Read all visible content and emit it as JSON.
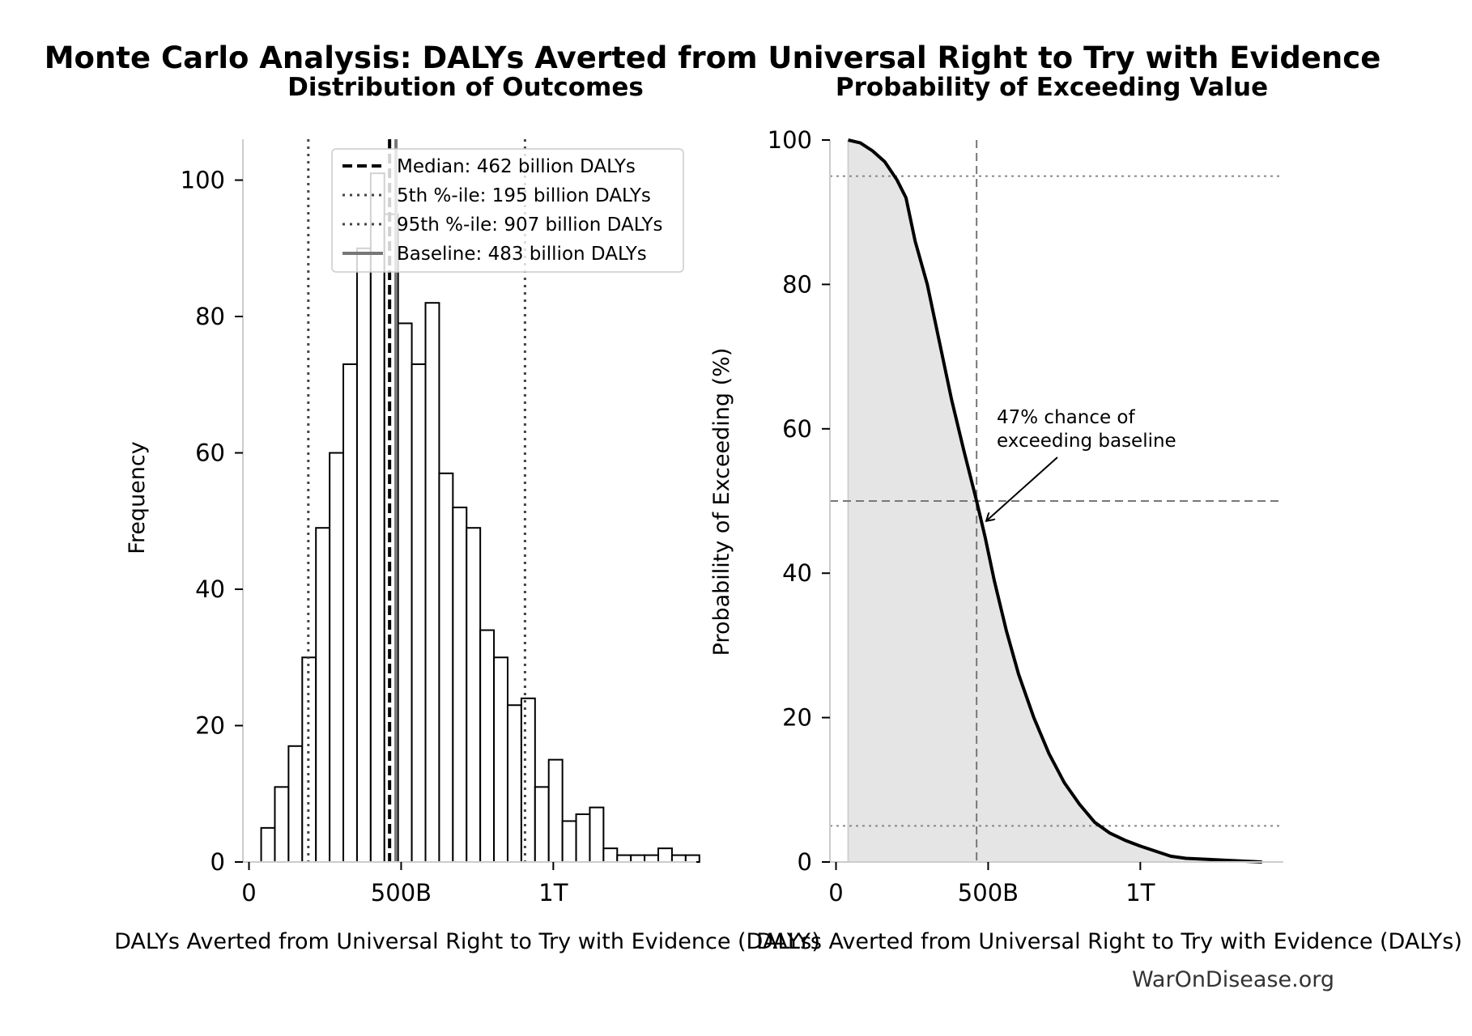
{
  "figure": {
    "suptitle": "Monte Carlo Analysis: DALYs Averted from Universal Right to Try with Evidence",
    "watermark": "WarOnDisease.org"
  },
  "chart_data": [
    {
      "type": "bar",
      "subtype": "histogram",
      "title": "Distribution of Outcomes",
      "xlabel": "DALYs Averted from Universal Right to Try with Evidence (DALYs)",
      "ylabel": "Frequency",
      "x_ticks": [
        {
          "value": 0,
          "label": "0"
        },
        {
          "value": 500,
          "label": "500B"
        },
        {
          "value": 1000,
          "label": "1T"
        }
      ],
      "y_ticks": [
        0,
        20,
        40,
        60,
        80,
        100
      ],
      "xlim": [
        -20,
        1470
      ],
      "ylim": [
        0,
        106
      ],
      "x_unit": "billion DALYs",
      "bins": {
        "start": 40,
        "width": 45,
        "counts": [
          5,
          11,
          17,
          30,
          49,
          60,
          73,
          90,
          101,
          95,
          79,
          73,
          82,
          57,
          52,
          49,
          34,
          30,
          23,
          24,
          11,
          15,
          6,
          7,
          8,
          2,
          1,
          1,
          1,
          2,
          1,
          1
        ]
      },
      "reference_lines": [
        {
          "name": "Median",
          "value": 462,
          "style": "dashed",
          "color": "#000000",
          "label": "Median: 462 billion DALYs"
        },
        {
          "name": "5th percentile",
          "value": 195,
          "style": "dotted",
          "color": "#444444",
          "label": "5th %-ile: 195 billion DALYs"
        },
        {
          "name": "95th percentile",
          "value": 907,
          "style": "dotted",
          "color": "#444444",
          "label": "95th %-ile: 907 billion DALYs"
        },
        {
          "name": "Baseline",
          "value": 483,
          "style": "solid",
          "color": "#777777",
          "label": "Baseline: 483 billion DALYs"
        }
      ],
      "legend": "top-right"
    },
    {
      "type": "area",
      "subtype": "exceedance-curve",
      "title": "Probability of Exceeding Value",
      "xlabel": "DALYs Averted from Universal Right to Try with Evidence (DALYs)",
      "ylabel": "Probability of Exceeding (%)",
      "x_ticks": [
        {
          "value": 0,
          "label": "0"
        },
        {
          "value": 500,
          "label": "500B"
        },
        {
          "value": 1000,
          "label": "1T"
        }
      ],
      "y_ticks": [
        0,
        20,
        40,
        60,
        80,
        100
      ],
      "xlim": [
        -20,
        1470
      ],
      "ylim": [
        0,
        100
      ],
      "x_unit": "billion DALYs",
      "series": [
        {
          "x": [
            40,
            80,
            120,
            160,
            200,
            230,
            260,
            300,
            340,
            380,
            420,
            462,
            490,
            520,
            560,
            600,
            650,
            700,
            750,
            800,
            850,
            900,
            950,
            1000,
            1050,
            1100,
            1150,
            1200,
            1300,
            1400
          ],
          "y": [
            100,
            99.6,
            98.5,
            97,
            94.5,
            92,
            86,
            80,
            72,
            64,
            57,
            50,
            45,
            39,
            32,
            26,
            20,
            15,
            11,
            8,
            5.5,
            4,
            3,
            2.2,
            1.5,
            0.8,
            0.5,
            0.4,
            0.2,
            0
          ]
        }
      ],
      "reference_lines": [
        {
          "axis": "x",
          "value": 462,
          "style": "dashed",
          "color": "#777777"
        },
        {
          "axis": "y",
          "value": 50,
          "style": "dashed",
          "color": "#777777"
        },
        {
          "axis": "y",
          "value": 95,
          "style": "dotted",
          "color": "#888888"
        },
        {
          "axis": "y",
          "value": 5,
          "style": "dotted",
          "color": "#888888"
        }
      ],
      "annotation": {
        "lines": [
          "47% chance of",
          "exceeding baseline"
        ],
        "points_to": {
          "x": 483,
          "y": 47
        }
      }
    }
  ]
}
